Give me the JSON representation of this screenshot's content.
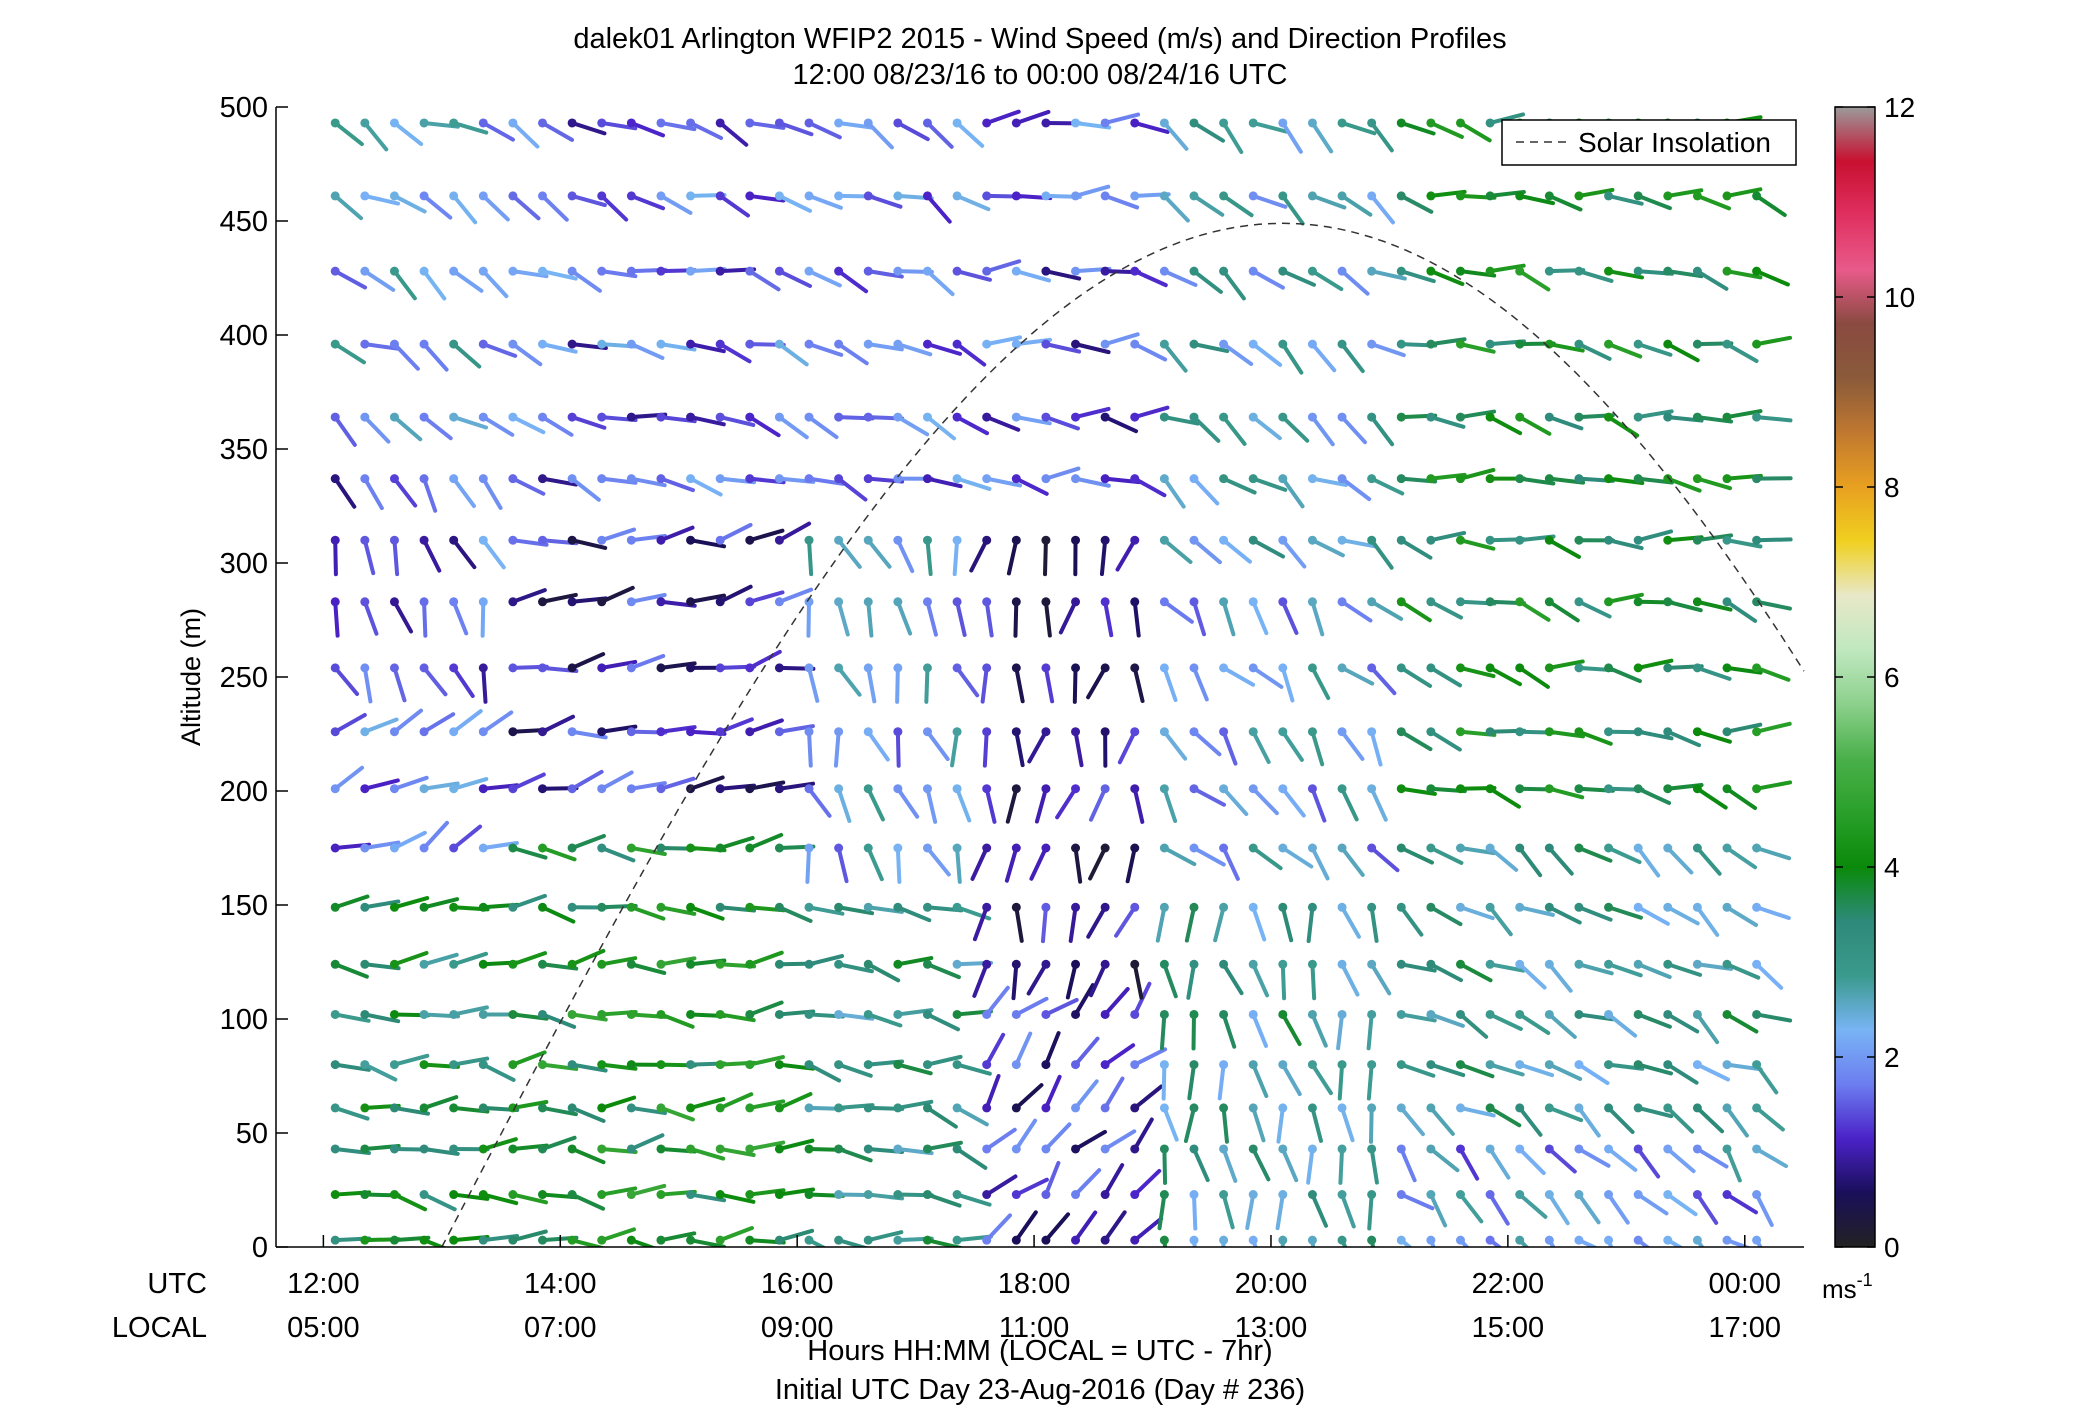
{
  "chart_data": {
    "type": "wind-barb profile (scatter)",
    "title": "dalek01 Arlington WFIP2 2015 - Wind Speed (m/s) and Direction Profiles",
    "subtitle": "12:00 08/23/16 to 00:00 08/24/16  UTC",
    "ylabel": "Altitude (m)",
    "ylim": [
      0,
      500
    ],
    "yticks": [
      "0",
      "50",
      "100",
      "150",
      "200",
      "250",
      "300",
      "350",
      "400",
      "450",
      "500"
    ],
    "x_range_hours_utc": [
      11.6,
      24.5
    ],
    "x_utc_label": "UTC",
    "x_local_label": "LOCAL",
    "xticks_utc": [
      "12:00",
      "14:00",
      "16:00",
      "18:00",
      "20:00",
      "22:00",
      "00:00"
    ],
    "xticks_local": [
      "05:00",
      "07:00",
      "09:00",
      "11:00",
      "13:00",
      "15:00",
      "17:00"
    ],
    "xlabel": "Hours HH:MM  (LOCAL = UTC - 7hr)",
    "xlabel2": "Initial UTC Day 23-Aug-2016 (Day # 236)",
    "legend": {
      "entry": "Solar Insolation",
      "placement": "top-right",
      "line": "dashed gray"
    },
    "colorbar": {
      "range": [
        0,
        12
      ],
      "ticks": [
        "0",
        "2",
        "4",
        "6",
        "8",
        "10",
        "12"
      ],
      "unit": "ms",
      "unit_exp": "-1",
      "gradient": [
        "#222222",
        "#1a0f5a",
        "#4b22c8",
        "#6c7ef0",
        "#78b4f5",
        "#3a9a8c",
        "#2e8a7a",
        "#0a8a0a",
        "#2aa02a",
        "#4ab04a",
        "#8cd08c",
        "#c0e8c0",
        "#e8e8c8",
        "#f0d020",
        "#e8a020",
        "#c07830",
        "#8a5a3a",
        "#8a4a40",
        "#e85a8a",
        "#e03060",
        "#c81030",
        "#9a9a9a"
      ]
    },
    "solar_insolation_peak": {
      "hour_utc": 20.1,
      "y": 449,
      "sunrise_hour_utc": 13.0,
      "curve_end_hour_utc": 24.5,
      "curve_end_y": 245
    },
    "levels_m": [
      3,
      23,
      43,
      61,
      80,
      102,
      124,
      149,
      175,
      201,
      226,
      254,
      283,
      310,
      337,
      364,
      396,
      428,
      461,
      493
    ],
    "times_utc_hours": [
      12.1,
      12.35,
      12.6,
      12.85,
      13.1,
      13.35,
      13.6,
      13.85,
      14.1,
      14.35,
      14.6,
      14.85,
      15.1,
      15.35,
      15.6,
      15.85,
      16.1,
      16.35,
      16.6,
      16.85,
      17.1,
      17.35,
      17.6,
      17.85,
      18.1,
      18.35,
      18.6,
      18.85,
      19.1,
      19.35,
      19.6,
      19.85,
      20.1,
      20.35,
      20.6,
      20.85,
      21.1,
      21.35,
      21.6,
      21.85,
      22.1,
      22.35,
      22.6,
      22.85,
      23.1,
      23.35,
      23.6,
      23.85,
      24.1
    ],
    "wind_regimes": [
      {
        "t_range": [
          12.0,
          13.4
        ],
        "alt_range": [
          500,
          350
        ],
        "dir_deg": 240,
        "speed": 2.3
      },
      {
        "t_range": [
          12.0,
          13.4
        ],
        "alt_range": [
          350,
          240
        ],
        "dir_deg": 200,
        "speed": 1.5
      },
      {
        "t_range": [
          12.0,
          13.4
        ],
        "alt_range": [
          240,
          170
        ],
        "dir_deg": 300,
        "speed": 1.8
      },
      {
        "t_range": [
          12.0,
          13.4
        ],
        "alt_range": [
          170,
          0
        ],
        "dir_deg": 265,
        "speed": 3.5
      },
      {
        "t_range": [
          13.4,
          16.0
        ],
        "alt_range": [
          500,
          320
        ],
        "dir_deg": 250,
        "speed": 1.6
      },
      {
        "t_range": [
          13.4,
          16.0
        ],
        "alt_range": [
          320,
          200
        ],
        "dir_deg": 275,
        "speed": 1.1
      },
      {
        "t_range": [
          13.4,
          16.0
        ],
        "alt_range": [
          200,
          0
        ],
        "dir_deg": 270,
        "speed": 4.0
      },
      {
        "t_range": [
          16.0,
          17.5
        ],
        "alt_range": [
          500,
          330
        ],
        "dir_deg": 245,
        "speed": 1.8
      },
      {
        "t_range": [
          16.0,
          17.5
        ],
        "alt_range": [
          330,
          170
        ],
        "dir_deg": 195,
        "speed": 2.2
      },
      {
        "t_range": [
          16.0,
          17.5
        ],
        "alt_range": [
          170,
          0
        ],
        "dir_deg": 260,
        "speed": 3.2
      },
      {
        "t_range": [
          17.5,
          19.0
        ],
        "alt_range": [
          500,
          330
        ],
        "dir_deg": 265,
        "speed": 1.5
      },
      {
        "t_range": [
          17.5,
          19.0
        ],
        "alt_range": [
          330,
          120
        ],
        "dir_deg": 170,
        "speed": 0.8
      },
      {
        "t_range": [
          17.5,
          19.0
        ],
        "alt_range": [
          120,
          0
        ],
        "dir_deg": 315,
        "speed": 1.2
      },
      {
        "t_range": [
          19.0,
          21.0
        ],
        "alt_range": [
          500,
          300
        ],
        "dir_deg": 235,
        "speed": 2.6
      },
      {
        "t_range": [
          19.0,
          21.0
        ],
        "alt_range": [
          300,
          150
        ],
        "dir_deg": 220,
        "speed": 2.2
      },
      {
        "t_range": [
          19.0,
          21.0
        ],
        "alt_range": [
          150,
          0
        ],
        "dir_deg": 190,
        "speed": 3.0
      },
      {
        "t_range": [
          21.0,
          24.2
        ],
        "alt_range": [
          500,
          200
        ],
        "dir_deg": 260,
        "speed": 3.8
      },
      {
        "t_range": [
          21.0,
          24.2
        ],
        "alt_range": [
          200,
          60
        ],
        "dir_deg": 240,
        "speed": 3.0
      },
      {
        "t_range": [
          21.0,
          24.2
        ],
        "alt_range": [
          60,
          0
        ],
        "dir_deg": 225,
        "speed": 2.0
      }
    ]
  }
}
